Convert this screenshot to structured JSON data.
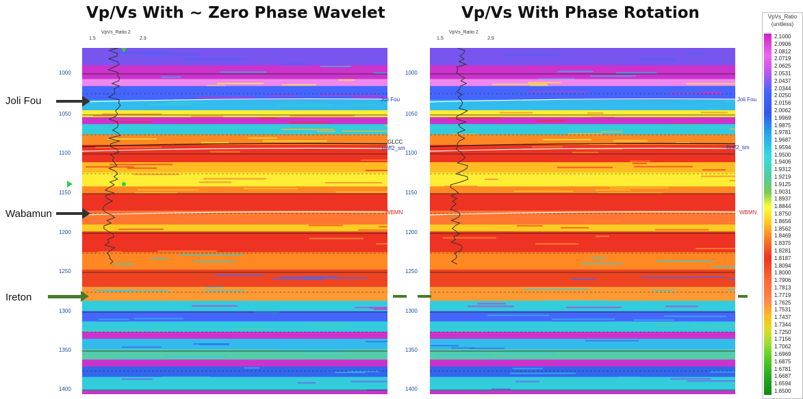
{
  "titles": {
    "left": "Vp/Vs With ~ Zero Phase Wavelet",
    "right": "Vp/Vs With Phase Rotation"
  },
  "log_track": {
    "name": "VpVs_Ratio 2",
    "min": "1.5",
    "max": "2.9"
  },
  "time_ticks": [
    "1000",
    "1050",
    "1100",
    "1150",
    "1200",
    "1250",
    "1300",
    "1350",
    "1400"
  ],
  "horizons": {
    "joli_fou": "Joli Fou",
    "glcc": "GLCC",
    "bnff2": "Bnff2_sm",
    "wbmn": "WBMN"
  },
  "formation_labels": {
    "joli_fou": "Joli Fou",
    "wabamun": "Wabamun",
    "ireton": "Ireton"
  },
  "colorbar": {
    "title": "VpVs_Ratio",
    "unit": "(unitless)",
    "values": [
      "2.1000",
      "2.0906",
      "2.0812",
      "2.0719",
      "2.0625",
      "2.0531",
      "2.0437",
      "2.0344",
      "2.0250",
      "2.0156",
      "2.0062",
      "1.9969",
      "1.9875",
      "1.9781",
      "1.9687",
      "1.9594",
      "1.9500",
      "1.9406",
      "1.9312",
      "1.9219",
      "1.9125",
      "1.9031",
      "1.8937",
      "1.8844",
      "1.8750",
      "1.8656",
      "1.8562",
      "1.8469",
      "1.8375",
      "1.8281",
      "1.8187",
      "1.8094",
      "1.8000",
      "1.7906",
      "1.7813",
      "1.7719",
      "1.7625",
      "1.7531",
      "1.7437",
      "1.7344",
      "1.7250",
      "1.7156",
      "1.7062",
      "1.6969",
      "1.6875",
      "1.6781",
      "1.6687",
      "1.6594",
      "1.6500"
    ]
  },
  "colors": {
    "magenta": "#cc22cc",
    "blue": "#3355ee",
    "cyan": "#33dddd",
    "yellow": "#ffee33",
    "orange": "#ff8822",
    "red": "#ee3322",
    "green_arrow": "#4a7a2a",
    "dark_arrow": "#333333"
  }
}
